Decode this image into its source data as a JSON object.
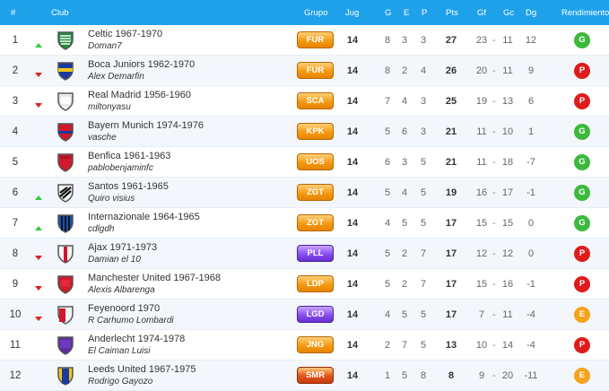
{
  "header": {
    "hash": "#",
    "club": "Club",
    "grupo": "Grupo",
    "jug": "Jug",
    "g": "G",
    "e": "E",
    "p": "P",
    "pts": "Pts",
    "gf": "Gf",
    "gc": "Gc",
    "dg": "Dg",
    "rendimiento": "Rendimiento"
  },
  "colors": {
    "header_bg": "#1fa1ea",
    "trend_up": "#2ecc40",
    "trend_down": "#e02020",
    "perf_g": "#3cb93c",
    "perf_p": "#e01b1b",
    "perf_e": "#f5a31a"
  },
  "rows": [
    {
      "rank": "1",
      "trend": "up",
      "club": "Celtic 1967-1970",
      "manager": "Doman7",
      "crest": "celtic-crest",
      "group": "FUR",
      "group_style": "orange",
      "jug": "14",
      "g": "8",
      "e": "3",
      "p": "3",
      "pts": "27",
      "gf": "23",
      "dash": "-",
      "gc": "11",
      "dg": "12",
      "perf": "G"
    },
    {
      "rank": "2",
      "trend": "down",
      "club": "Boca Juniors 1962-1970",
      "manager": "Alex Demarfin",
      "crest": "boca-crest",
      "group": "FUR",
      "group_style": "orange",
      "jug": "14",
      "g": "8",
      "e": "2",
      "p": "4",
      "pts": "26",
      "gf": "20",
      "dash": "-",
      "gc": "11",
      "dg": "9",
      "perf": "P"
    },
    {
      "rank": "3",
      "trend": "down",
      "club": "Real Madrid 1956-1960",
      "manager": "miltonyasu",
      "crest": "madrid-crest",
      "group": "SCA",
      "group_style": "orange",
      "jug": "14",
      "g": "7",
      "e": "4",
      "p": "3",
      "pts": "25",
      "gf": "19",
      "dash": "-",
      "gc": "13",
      "dg": "6",
      "perf": "P"
    },
    {
      "rank": "4",
      "trend": "none",
      "club": "Bayern Munich 1974-1976",
      "manager": "vasche",
      "crest": "bayern-crest",
      "group": "KPK",
      "group_style": "orange",
      "jug": "14",
      "g": "5",
      "e": "6",
      "p": "3",
      "pts": "21",
      "gf": "11",
      "dash": "-",
      "gc": "10",
      "dg": "1",
      "perf": "G"
    },
    {
      "rank": "5",
      "trend": "none",
      "club": "Benfica 1961-1963",
      "manager": "pablobenjaminfc",
      "crest": "benfica-crest",
      "group": "UOS",
      "group_style": "orange",
      "jug": "14",
      "g": "6",
      "e": "3",
      "p": "5",
      "pts": "21",
      "gf": "11",
      "dash": "-",
      "gc": "18",
      "dg": "-7",
      "perf": "G"
    },
    {
      "rank": "6",
      "trend": "up",
      "club": "Santos 1961-1965",
      "manager": "Quiro visius",
      "crest": "santos-crest",
      "group": "ZGT",
      "group_style": "orange",
      "jug": "14",
      "g": "5",
      "e": "4",
      "p": "5",
      "pts": "19",
      "gf": "16",
      "dash": "-",
      "gc": "17",
      "dg": "-1",
      "perf": "G"
    },
    {
      "rank": "7",
      "trend": "up",
      "club": "Internazionale 1964-1965",
      "manager": "cdlgdh",
      "crest": "inter-crest",
      "group": "ZGT",
      "group_style": "orange",
      "jug": "14",
      "g": "4",
      "e": "5",
      "p": "5",
      "pts": "17",
      "gf": "15",
      "dash": "-",
      "gc": "15",
      "dg": "0",
      "perf": "G"
    },
    {
      "rank": "8",
      "trend": "down",
      "club": "Ajax 1971-1973",
      "manager": "Damian el 10",
      "crest": "ajax-crest",
      "group": "PLL",
      "group_style": "purple",
      "jug": "14",
      "g": "5",
      "e": "2",
      "p": "7",
      "pts": "17",
      "gf": "12",
      "dash": "-",
      "gc": "12",
      "dg": "0",
      "perf": "P"
    },
    {
      "rank": "9",
      "trend": "down",
      "club": "Manchester United 1967-1968",
      "manager": "Alexis Albarenga",
      "crest": "manutd-crest",
      "group": "LDP",
      "group_style": "orange",
      "jug": "14",
      "g": "5",
      "e": "2",
      "p": "7",
      "pts": "17",
      "gf": "15",
      "dash": "-",
      "gc": "16",
      "dg": "-1",
      "perf": "P"
    },
    {
      "rank": "10",
      "trend": "down",
      "club": "Feyenoord 1970",
      "manager": "R Carhumo Lombardi",
      "crest": "feyenoord-crest",
      "group": "LGD",
      "group_style": "purple",
      "jug": "14",
      "g": "4",
      "e": "5",
      "p": "5",
      "pts": "17",
      "gf": "7",
      "dash": "-",
      "gc": "11",
      "dg": "-4",
      "perf": "E"
    },
    {
      "rank": "11",
      "trend": "none",
      "club": "Anderlecht 1974-1978",
      "manager": "El Caiman Luisi",
      "crest": "anderlecht-crest",
      "group": "JNG",
      "group_style": "orange",
      "jug": "14",
      "g": "2",
      "e": "7",
      "p": "5",
      "pts": "13",
      "gf": "10",
      "dash": "-",
      "gc": "14",
      "dg": "-4",
      "perf": "P"
    },
    {
      "rank": "12",
      "trend": "none",
      "club": "Leeds United 1967-1975",
      "manager": "Rodrigo Gayozo",
      "crest": "leeds-crest",
      "group": "SMR",
      "group_style": "red",
      "jug": "14",
      "g": "1",
      "e": "5",
      "p": "8",
      "pts": "8",
      "gf": "9",
      "dash": "-",
      "gc": "20",
      "dg": "-11",
      "perf": "E"
    }
  ]
}
